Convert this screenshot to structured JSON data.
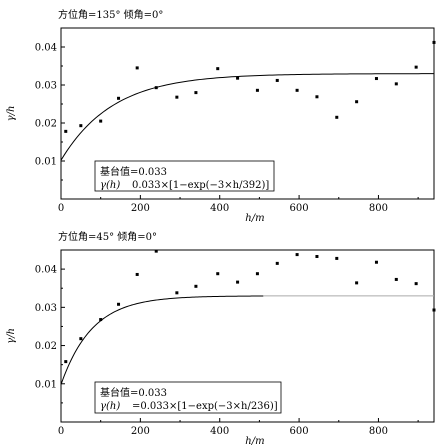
{
  "chart_data": [
    {
      "type": "scatter",
      "title": "方位角=135° 倾角=0°",
      "xlabel": "h/m",
      "ylabel": "γ/h",
      "xlim": [
        0,
        940
      ],
      "ylim": [
        0,
        0.045
      ],
      "xticks": [
        0,
        200,
        400,
        600,
        800
      ],
      "xtick_labels": [
        "0",
        "200",
        "400",
        "600",
        "800"
      ],
      "yticks": [
        0.01,
        0.02,
        0.03,
        0.04
      ],
      "ytick_labels": [
        "0.01",
        "0.02",
        "0.03",
        "0.04"
      ],
      "grid": false,
      "series": [
        {
          "kind": "points",
          "x": [
            12,
            50,
            100,
            145,
            192,
            240,
            292,
            340,
            395,
            445,
            495,
            545,
            595,
            645,
            695,
            745,
            795,
            845,
            895,
            940
          ],
          "y": [
            0.0178,
            0.0193,
            0.0205,
            0.0265,
            0.0345,
            0.0293,
            0.0268,
            0.028,
            0.0343,
            0.0318,
            0.0286,
            0.0312,
            0.0286,
            0.0269,
            0.0215,
            0.0256,
            0.0317,
            0.0303,
            0.0347,
            0.0412
          ]
        },
        {
          "kind": "model",
          "model": "exponential",
          "sill": 0.033,
          "range": 392,
          "x_start": 0,
          "x_end": 940,
          "y_at_zero": 0.0102
        }
      ],
      "annotations": {
        "sill_label": "基台值=0.033",
        "model_lhs": "γ(h)",
        "model_rhs": "0.033×[1−exp(−3×h/392)]"
      }
    },
    {
      "type": "scatter",
      "title": "方位角=45° 倾角=0°",
      "xlabel": "h/m",
      "ylabel": "γ/h",
      "xlim": [
        0,
        940
      ],
      "ylim": [
        0,
        0.045
      ],
      "xticks": [
        0,
        200,
        400,
        600,
        800
      ],
      "xtick_labels": [
        "0",
        "200",
        "400",
        "600",
        "800"
      ],
      "yticks": [
        0.01,
        0.02,
        0.03,
        0.04
      ],
      "ytick_labels": [
        "0.01",
        "0.02",
        "0.03",
        "0.04"
      ],
      "grid": false,
      "series": [
        {
          "kind": "points",
          "x": [
            12,
            50,
            100,
            145,
            192,
            240,
            292,
            340,
            395,
            445,
            495,
            545,
            595,
            645,
            695,
            745,
            795,
            845,
            895,
            940
          ],
          "y": [
            0.0158,
            0.0218,
            0.0268,
            0.0308,
            0.0386,
            0.0447,
            0.0338,
            0.0355,
            0.0388,
            0.0366,
            0.0388,
            0.0415,
            0.0438,
            0.0433,
            0.0428,
            0.0364,
            0.0418,
            0.0373,
            0.0362,
            0.0293
          ]
        },
        {
          "kind": "model",
          "model": "exponential",
          "sill": 0.033,
          "range": 236,
          "x_start": 0,
          "x_end": 510,
          "y_at_zero": 0.0098
        },
        {
          "kind": "sill_line",
          "value": 0.033,
          "x_start": 510,
          "x_end": 940,
          "color": "#aaaaaa"
        }
      ],
      "annotations": {
        "sill_label": "基台值=0.033",
        "model_lhs": "γ(h)",
        "model_rhs": "=0.033×[1−exp(−3×h/236)]"
      }
    }
  ]
}
